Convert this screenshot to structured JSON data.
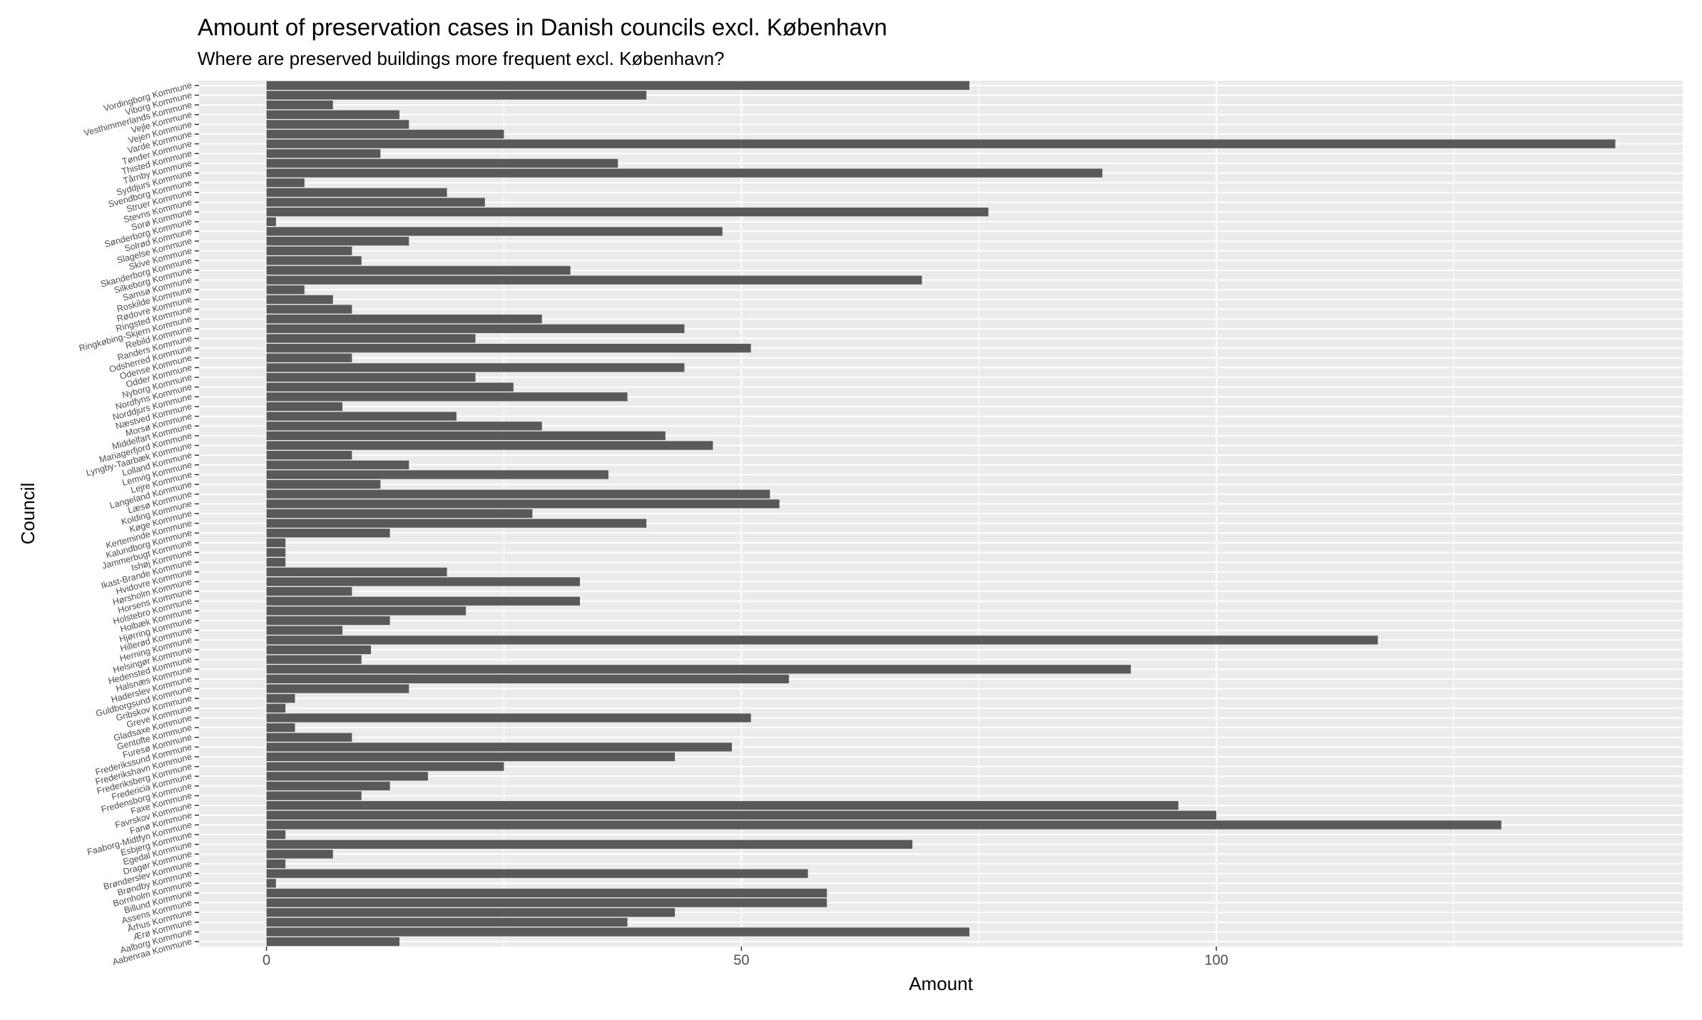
{
  "chart_data": {
    "type": "bar",
    "orientation": "horizontal",
    "title": "Amount of preservation cases in Danish councils excl. København",
    "subtitle": "Where are preserved buildings more frequent excl. København?",
    "x_label": "Amount",
    "y_label": "Council",
    "categories": [
      "Vordingborg Kommune",
      "Viborg Kommune",
      "Vesthimmerlands Kommune",
      "Vejle Kommune",
      "Vejen Kommune",
      "Varde Kommune",
      "Tønder Kommune",
      "Thisted Kommune",
      "Tårnby Kommune",
      "Syddjurs Kommune",
      "Svendborg Kommune",
      "Struer Kommune",
      "Stevns Kommune",
      "Sorø Kommune",
      "Sønderborg Kommune",
      "Solrød Kommune",
      "Slagelse Kommune",
      "Skive Kommune",
      "Skanderborg Kommune",
      "Silkeborg Kommune",
      "Samsø Kommune",
      "Roskilde Kommune",
      "Rødovre Kommune",
      "Ringsted Kommune",
      "Ringkøbing-Skjern Kommune",
      "Rebild Kommune",
      "Randers Kommune",
      "Odsherred Kommune",
      "Odense Kommune",
      "Odder Kommune",
      "Nyborg Kommune",
      "Nordfyns Kommune",
      "Norddjurs Kommune",
      "Næstved Kommune",
      "Morsø Kommune",
      "Middelfart Kommune",
      "Mariagerfjord Kommune",
      "Lyngby-Taarbæk Kommune",
      "Lolland Kommune",
      "Lemvig Kommune",
      "Lejre Kommune",
      "Langeland Kommune",
      "Læsø Kommune",
      "Kolding Kommune",
      "Køge Kommune",
      "Kerteminde Kommune",
      "Kalundborg Kommune",
      "Jammerbugt Kommune",
      "Ishøj Kommune",
      "Ikast-Brande Kommune",
      "Hvidovre Kommune",
      "Hørsholm Kommune",
      "Horsens Kommune",
      "Holstebro Kommune",
      "Holbæk Kommune",
      "Hjørring Kommune",
      "Hillerød Kommune",
      "Herning Kommune",
      "Helsingør Kommune",
      "Hedensted Kommune",
      "Halsnæs Kommune",
      "Haderslev Kommune",
      "Guldborgsund Kommune",
      "Gribskov Kommune",
      "Greve Kommune",
      "Gladsaxe Kommune",
      "Gentofte Kommune",
      "Furesø Kommune",
      "Frederikssund Kommune",
      "Frederikshavn Kommune",
      "Frederiksberg Kommune",
      "Fredericia Kommune",
      "Fredensborg Kommune",
      "Faxe Kommune",
      "Favrskov Kommune",
      "Fanø Kommune",
      "Faaborg-Midtfyn Kommune",
      "Esbjerg Kommune",
      "Egedal Kommune",
      "Dragør Kommune",
      "Brønderslev Kommune",
      "Brøndby Kommune",
      "Bornholm Kommune",
      "Billund Kommune",
      "Assens Kommune",
      "Århus Kommune",
      "Ærø Kommune",
      "Aalborg Kommune",
      "Aabenraa Kommune"
    ],
    "values": [
      74,
      40,
      7,
      14,
      15,
      25,
      142,
      12,
      37,
      88,
      4,
      19,
      23,
      76,
      1,
      48,
      15,
      9,
      10,
      32,
      69,
      4,
      7,
      9,
      29,
      44,
      22,
      51,
      9,
      44,
      22,
      26,
      38,
      8,
      20,
      29,
      42,
      47,
      9,
      15,
      36,
      12,
      53,
      54,
      28,
      40,
      13,
      2,
      2,
      2,
      19,
      33,
      9,
      33,
      21,
      13,
      8,
      117,
      11,
      10,
      91,
      55,
      15,
      3,
      2,
      51,
      3,
      9,
      49,
      43,
      25,
      17,
      13,
      10,
      96,
      100,
      130,
      2,
      68,
      7,
      2,
      57,
      1,
      59,
      59,
      43,
      38,
      74,
      14
    ],
    "color": "#595959",
    "xlim": [
      -7.1,
      149.1
    ],
    "xticks": [
      0,
      50,
      100
    ],
    "x_minor_gridlines": [
      25,
      75,
      125
    ],
    "grid": true
  }
}
